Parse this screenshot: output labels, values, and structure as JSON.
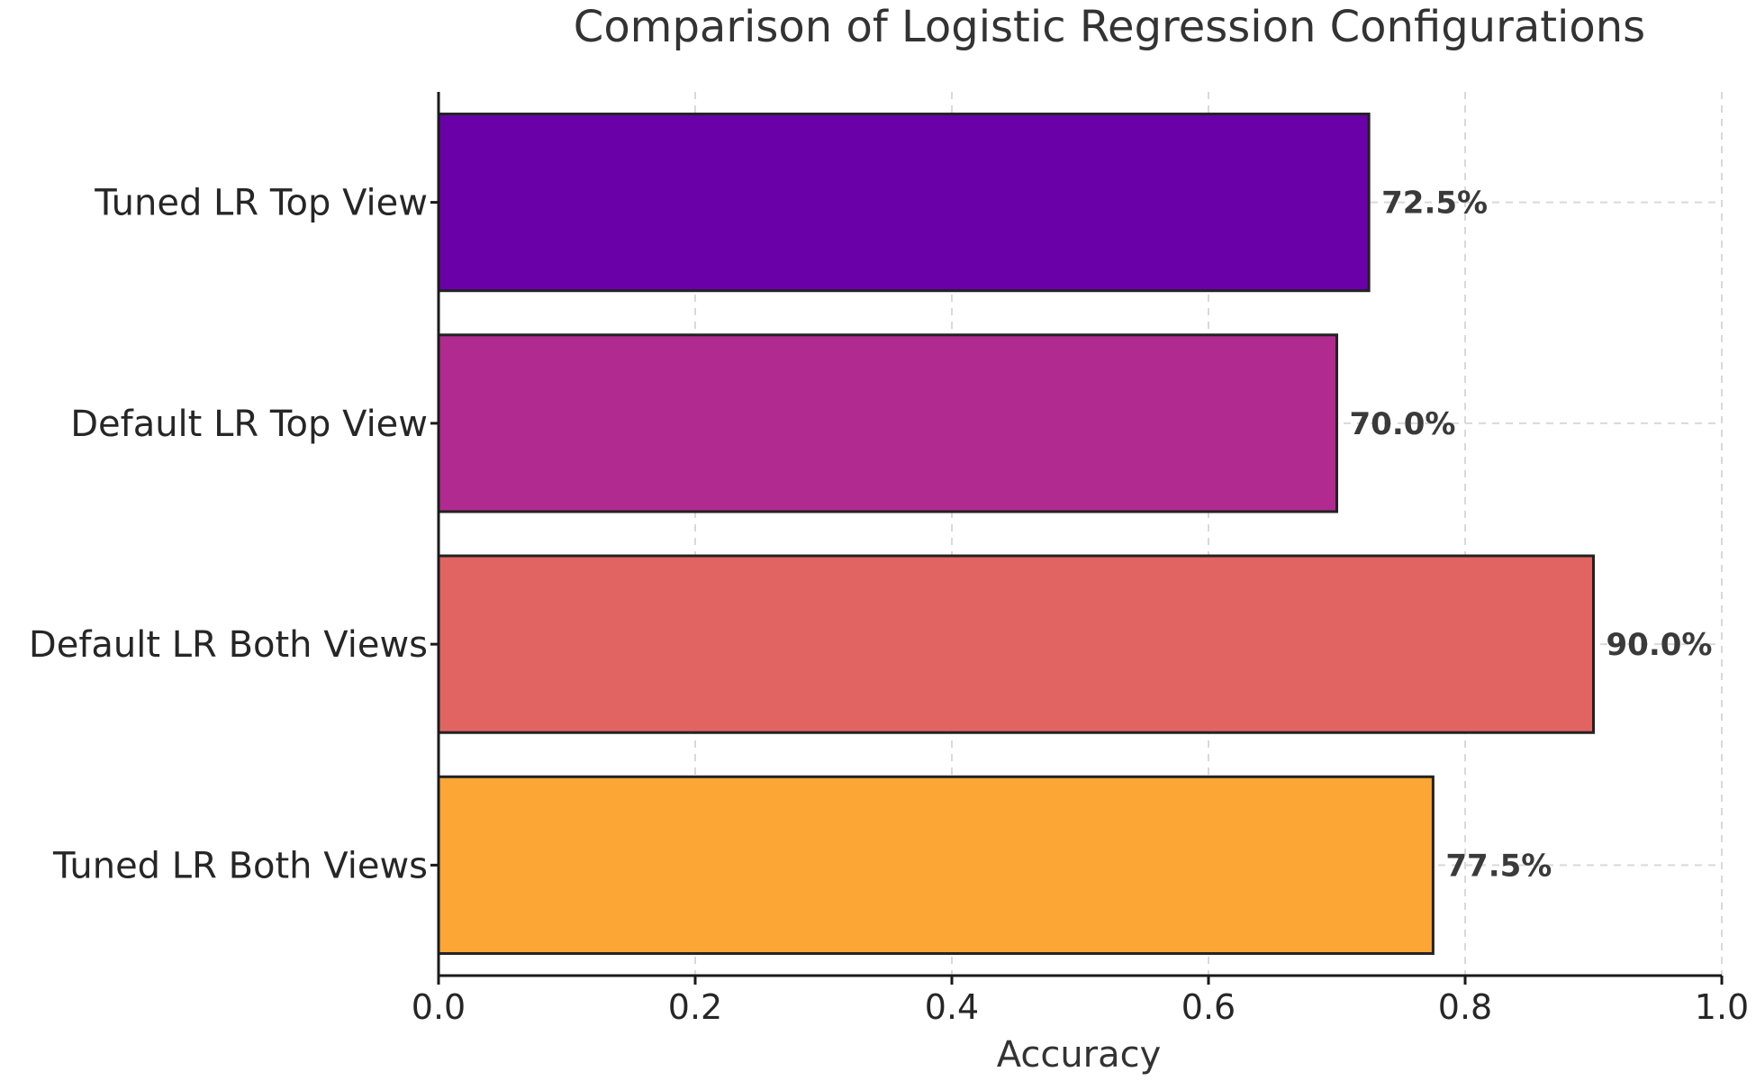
{
  "chart_data": {
    "type": "bar",
    "orientation": "horizontal",
    "title": "Comparison of Logistic Regression Configurations",
    "xlabel": "Accuracy",
    "ylabel": "",
    "xlim": [
      0,
      1
    ],
    "xticks": [
      0.0,
      0.2,
      0.4,
      0.6,
      0.8,
      1.0
    ],
    "xtick_labels": [
      "0.0",
      "0.2",
      "0.4",
      "0.6",
      "0.8",
      "1.0"
    ],
    "grid": true,
    "categories": [
      "Tuned LR Top View",
      "Default LR Top View",
      "Default LR Both Views",
      "Tuned LR Both Views"
    ],
    "values": [
      0.725,
      0.7,
      0.9,
      0.775
    ],
    "value_labels": [
      "72.5%",
      "70.0%",
      "90.0%",
      "77.5%"
    ],
    "colors": [
      "#6a00a8",
      "#b02a8f",
      "#e16462",
      "#fca636"
    ]
  }
}
